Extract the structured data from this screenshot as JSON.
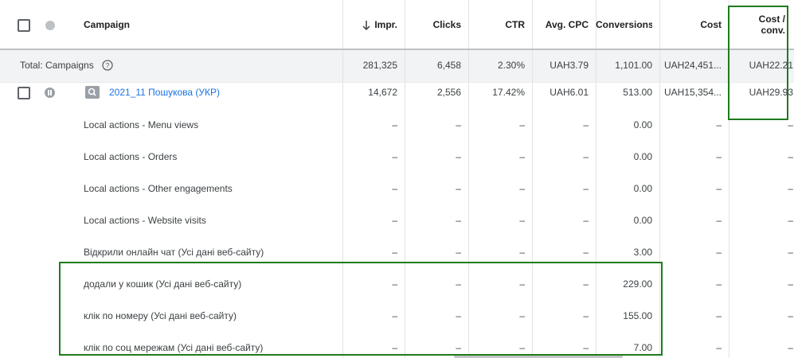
{
  "header": {
    "campaign": "Campaign",
    "columns": [
      "Impr.",
      "Clicks",
      "CTR",
      "Avg. CPC",
      "Conversions",
      "Cost",
      "Cost / conv."
    ]
  },
  "total": {
    "label": "Total: Campaigns",
    "values": [
      "281,325",
      "6,458",
      "2.30%",
      "UAH3.79",
      "1,101.00",
      "UAH24,451...",
      "UAH22.21"
    ]
  },
  "campaign": {
    "name": "2021_11 Пошукова (УКР)",
    "values": [
      "14,672",
      "2,556",
      "17.42%",
      "UAH6.01",
      "513.00",
      "UAH15,354...",
      "UAH29.93"
    ]
  },
  "rows": [
    {
      "label": "Local actions - Menu views",
      "values": [
        "–",
        "–",
        "–",
        "–",
        "0.00",
        "–",
        "–"
      ]
    },
    {
      "label": "Local actions - Orders",
      "values": [
        "–",
        "–",
        "–",
        "–",
        "0.00",
        "–",
        "–"
      ]
    },
    {
      "label": "Local actions - Other engagements",
      "values": [
        "–",
        "–",
        "–",
        "–",
        "0.00",
        "–",
        "–"
      ]
    },
    {
      "label": "Local actions - Website visits",
      "values": [
        "–",
        "–",
        "–",
        "–",
        "0.00",
        "–",
        "–"
      ]
    },
    {
      "label": "Відкрили онлайн чат (Усі дані веб-сайту)",
      "values": [
        "–",
        "–",
        "–",
        "–",
        "3.00",
        "–",
        "–"
      ]
    },
    {
      "label": "додали у кошик (Усі дані веб-сайту)",
      "values": [
        "–",
        "–",
        "–",
        "–",
        "229.00",
        "–",
        "–"
      ]
    },
    {
      "label": "клік по номеру (Усі дані веб-сайту)",
      "values": [
        "–",
        "–",
        "–",
        "–",
        "155.00",
        "–",
        "–"
      ]
    },
    {
      "label": "клік по соц мережам (Усі дані веб-сайту)",
      "values": [
        "–",
        "–",
        "–",
        "–",
        "7.00",
        "–",
        "–"
      ]
    }
  ]
}
